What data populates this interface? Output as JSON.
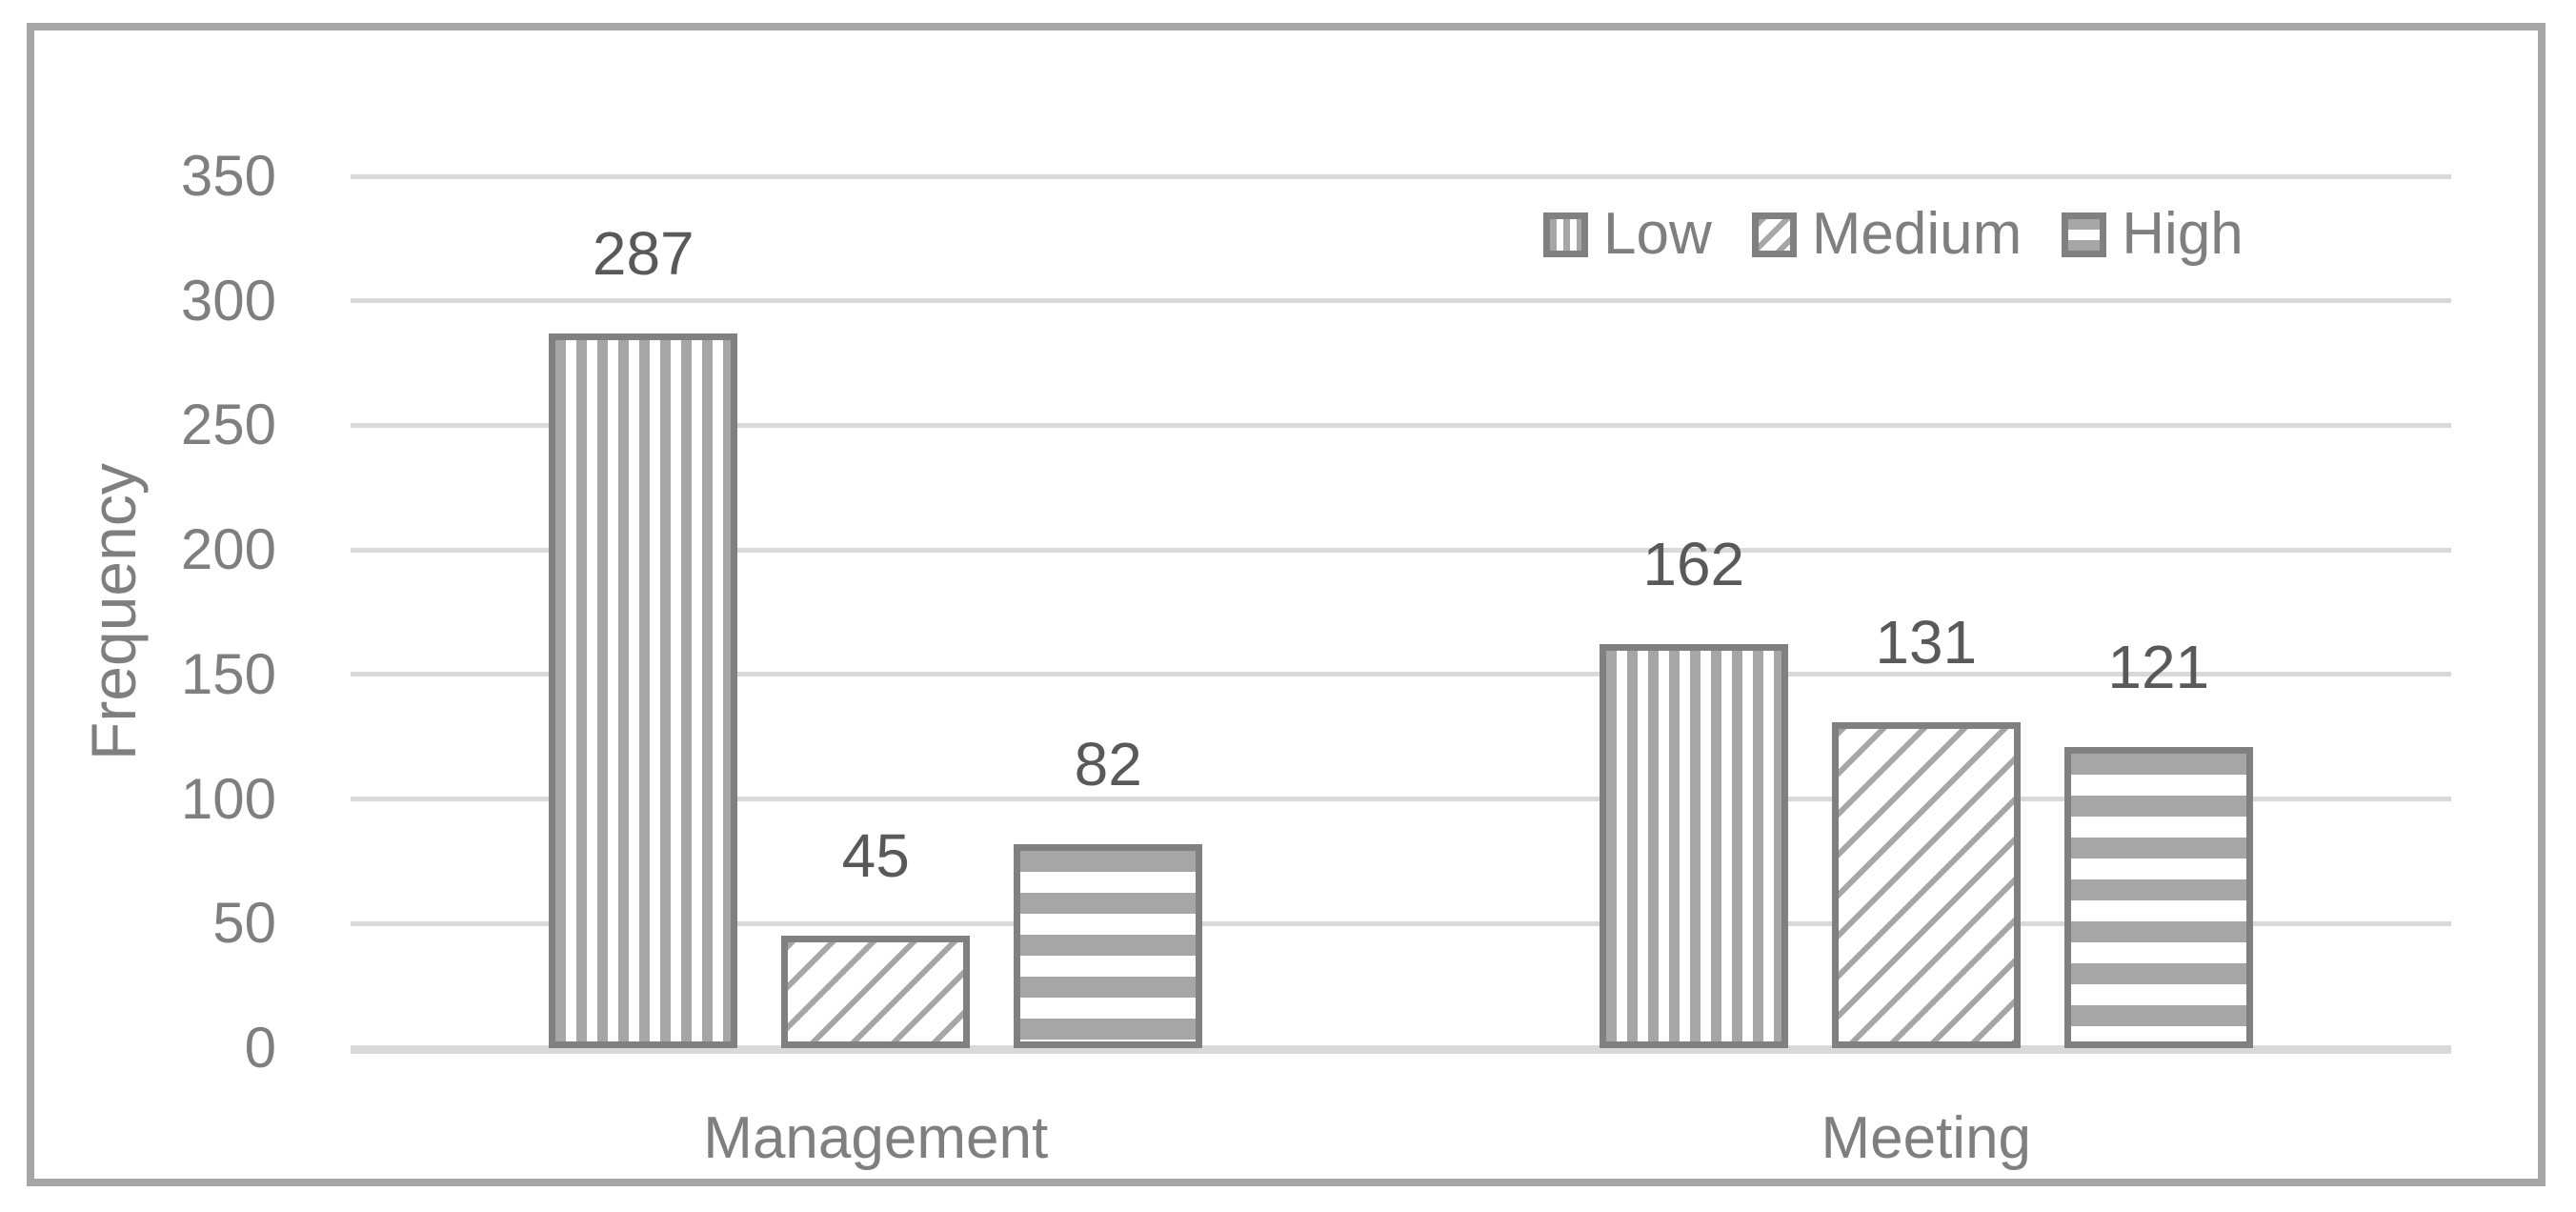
{
  "chart_data": {
    "type": "bar",
    "title": "",
    "xlabel": "",
    "ylabel": "Frequency",
    "categories": [
      "Management",
      "Meeting"
    ],
    "series": [
      {
        "name": "Low",
        "pattern": "vertical-stripes",
        "values": [
          287,
          162
        ]
      },
      {
        "name": "Medium",
        "pattern": "diagonal-hatch",
        "values": [
          45,
          131
        ]
      },
      {
        "name": "High",
        "pattern": "horizontal-stripes",
        "values": [
          82,
          121
        ]
      }
    ],
    "data_labels_shown": true,
    "ylim": [
      0,
      350
    ],
    "ytick_step": 50,
    "yticks": [
      0,
      50,
      100,
      150,
      200,
      250,
      300,
      350
    ],
    "grid": "horizontal",
    "legend_position": "top-right",
    "colors": {
      "pattern_stroke": "#a6a6a6",
      "bar_border": "#808080",
      "gridline": "#d9d9d9",
      "axis_text": "#7f7f7f",
      "data_label_text": "#595959",
      "frame_border": "#a6a6a6",
      "background": "#ffffff"
    }
  }
}
